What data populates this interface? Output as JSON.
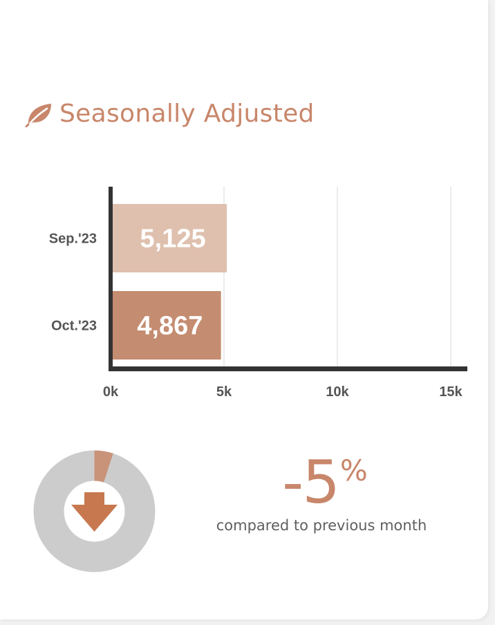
{
  "header": {
    "title": "Seasonally Adjusted",
    "icon": "leaf-icon"
  },
  "colors": {
    "accent": "#c8866a",
    "bar_light": "#dfc0ae",
    "bar_dark": "#c48c70",
    "axis": "#333333",
    "donut_track": "#cccccc",
    "donut_slice": "#c9937a",
    "arrow": "#c8784f"
  },
  "chart_data": {
    "type": "bar",
    "orientation": "horizontal",
    "categories": [
      "Sep.'23",
      "Oct.'23"
    ],
    "values": [
      5125,
      4867
    ],
    "data_labels": [
      "5,125",
      "4,867"
    ],
    "xlim": [
      0,
      15000
    ],
    "x_ticks": [
      0,
      5000,
      10000,
      15000
    ],
    "x_tick_labels": [
      "0k",
      "5k",
      "10k",
      "15k"
    ],
    "grid": true
  },
  "change": {
    "value": "-5",
    "unit": "%",
    "fraction": 0.05,
    "direction": "down",
    "caption": "compared to previous month"
  }
}
